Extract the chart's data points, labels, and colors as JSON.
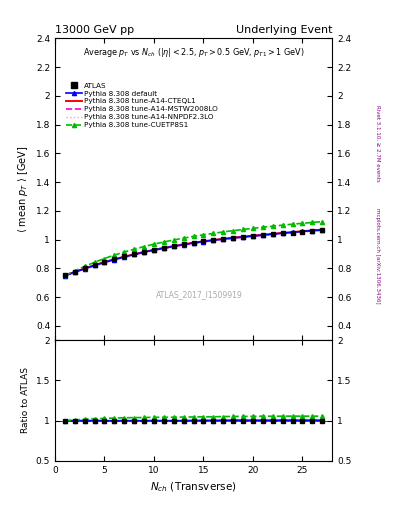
{
  "title_left": "13000 GeV pp",
  "title_right": "Underlying Event",
  "watermark": "ATLAS_2017_I1509919",
  "ylim_main": [
    0.3,
    2.4
  ],
  "ylim_ratio": [
    0.5,
    2.0
  ],
  "xlim": [
    0,
    28
  ],
  "xticks": [
    0,
    5,
    10,
    15,
    20,
    25
  ],
  "nch_data": [
    1,
    2,
    3,
    4,
    5,
    6,
    7,
    8,
    9,
    10,
    11,
    12,
    13,
    14,
    15,
    16,
    17,
    18,
    19,
    20,
    21,
    22,
    23,
    24,
    25,
    26,
    27
  ],
  "atlas_y": [
    0.752,
    0.775,
    0.8,
    0.822,
    0.845,
    0.865,
    0.882,
    0.9,
    0.916,
    0.93,
    0.944,
    0.957,
    0.968,
    0.978,
    0.987,
    0.996,
    1.003,
    1.01,
    1.017,
    1.024,
    1.03,
    1.037,
    1.043,
    1.049,
    1.055,
    1.061,
    1.066
  ],
  "atlas_yerr": [
    0.008,
    0.006,
    0.005,
    0.005,
    0.004,
    0.004,
    0.004,
    0.004,
    0.004,
    0.004,
    0.004,
    0.004,
    0.004,
    0.004,
    0.004,
    0.004,
    0.004,
    0.004,
    0.005,
    0.005,
    0.005,
    0.005,
    0.006,
    0.006,
    0.007,
    0.007,
    0.008
  ],
  "nch_mc": [
    1,
    2,
    3,
    4,
    5,
    6,
    7,
    8,
    9,
    10,
    11,
    12,
    13,
    14,
    15,
    16,
    17,
    18,
    19,
    20,
    21,
    22,
    23,
    24,
    25,
    26,
    27
  ],
  "default_y": [
    0.748,
    0.773,
    0.797,
    0.82,
    0.842,
    0.861,
    0.879,
    0.896,
    0.912,
    0.927,
    0.94,
    0.953,
    0.965,
    0.976,
    0.986,
    0.995,
    1.003,
    1.011,
    1.018,
    1.025,
    1.031,
    1.038,
    1.044,
    1.05,
    1.056,
    1.062,
    1.067
  ],
  "cteql1_y": [
    0.75,
    0.775,
    0.799,
    0.822,
    0.843,
    0.863,
    0.881,
    0.898,
    0.914,
    0.929,
    0.942,
    0.955,
    0.967,
    0.978,
    0.988,
    0.997,
    1.005,
    1.013,
    1.02,
    1.027,
    1.033,
    1.04,
    1.046,
    1.052,
    1.058,
    1.064,
    1.069
  ],
  "mstw_y": [
    0.748,
    0.772,
    0.796,
    0.818,
    0.839,
    0.859,
    0.877,
    0.894,
    0.91,
    0.924,
    0.938,
    0.951,
    0.963,
    0.974,
    0.984,
    0.993,
    1.001,
    1.009,
    1.016,
    1.023,
    1.03,
    1.036,
    1.042,
    1.048,
    1.054,
    1.06,
    1.065
  ],
  "nnpdf_y": [
    0.745,
    0.769,
    0.793,
    0.815,
    0.836,
    0.856,
    0.874,
    0.891,
    0.907,
    0.921,
    0.935,
    0.948,
    0.96,
    0.971,
    0.981,
    0.99,
    0.999,
    1.007,
    1.014,
    1.021,
    1.027,
    1.034,
    1.04,
    1.046,
    1.052,
    1.058,
    1.063
  ],
  "cuetp_y": [
    0.75,
    0.782,
    0.813,
    0.842,
    0.868,
    0.892,
    0.913,
    0.933,
    0.951,
    0.968,
    0.983,
    0.997,
    1.01,
    1.022,
    1.033,
    1.043,
    1.053,
    1.062,
    1.07,
    1.078,
    1.086,
    1.093,
    1.1,
    1.107,
    1.113,
    1.119,
    1.125
  ],
  "color_atlas": "#000000",
  "color_default": "#0000ff",
  "color_cteql1": "#ff0000",
  "color_mstw": "#ff00cc",
  "color_nnpdf": "#ff99dd",
  "color_cuetp": "#00bb00",
  "background_color": "#ffffff"
}
